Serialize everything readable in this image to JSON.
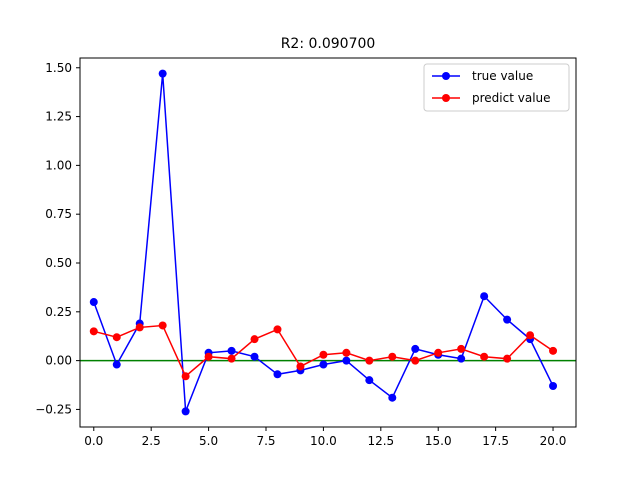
{
  "chart_data": {
    "type": "line",
    "title": "R2: 0.090700",
    "xlabel": "",
    "ylabel": "",
    "xlim": [
      -0.6,
      21.0
    ],
    "ylim": [
      -0.34,
      1.55
    ],
    "x": [
      0,
      1,
      2,
      3,
      4,
      5,
      6,
      7,
      8,
      9,
      10,
      11,
      12,
      13,
      14,
      15,
      16,
      17,
      18,
      19,
      20
    ],
    "xticks": [
      0.0,
      2.5,
      5.0,
      7.5,
      10.0,
      12.5,
      15.0,
      17.5,
      20.0
    ],
    "xtick_labels": [
      "0.0",
      "2.5",
      "5.0",
      "7.5",
      "10.0",
      "12.5",
      "15.0",
      "17.5",
      "20.0"
    ],
    "yticks": [
      -0.25,
      0.0,
      0.25,
      0.5,
      0.75,
      1.0,
      1.25,
      1.5
    ],
    "ytick_labels": [
      "−0.25",
      "0.00",
      "0.25",
      "0.50",
      "0.75",
      "1.00",
      "1.25",
      "1.50"
    ],
    "series": [
      {
        "name": "true value",
        "color": "#0000ff",
        "values": [
          0.3,
          -0.02,
          0.19,
          1.47,
          -0.26,
          0.04,
          0.05,
          0.02,
          -0.07,
          -0.05,
          -0.02,
          0.0,
          -0.1,
          -0.19,
          0.06,
          0.03,
          0.01,
          0.33,
          0.21,
          0.11,
          -0.13
        ]
      },
      {
        "name": "predict value",
        "color": "#ff0000",
        "values": [
          0.15,
          0.12,
          0.17,
          0.18,
          -0.08,
          0.02,
          0.01,
          0.11,
          0.16,
          -0.03,
          0.03,
          0.04,
          0.0,
          0.02,
          0.0,
          0.04,
          0.06,
          0.02,
          0.01,
          0.13,
          0.05
        ]
      }
    ],
    "reference_line": {
      "y": 0.0,
      "color": "#008000"
    },
    "legend_position": "top-right",
    "grid": false
  }
}
